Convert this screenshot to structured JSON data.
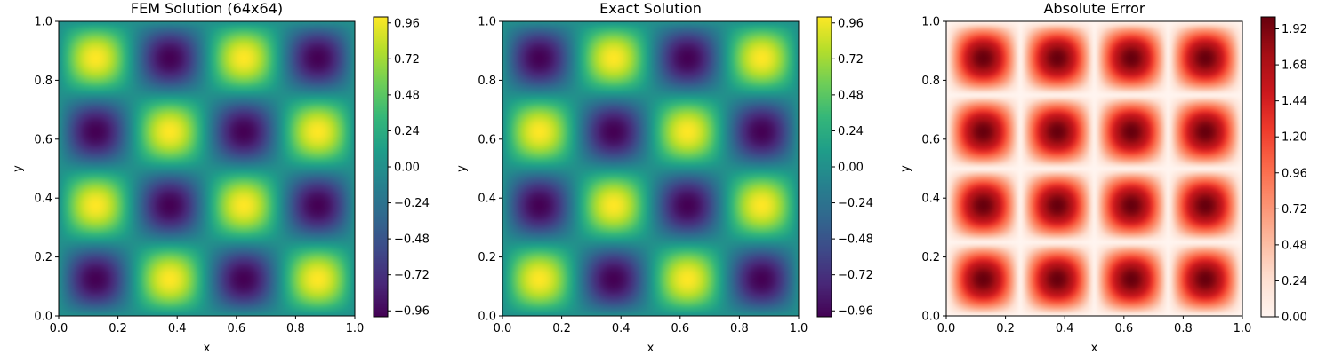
{
  "chart_data": [
    {
      "type": "heatmap",
      "title": "FEM Solution (64x64)",
      "xlabel": "x",
      "ylabel": "y",
      "xlim": [
        0,
        1
      ],
      "ylim": [
        0,
        1
      ],
      "x_ticks": [
        "0.0",
        "0.2",
        "0.4",
        "0.6",
        "0.8",
        "1.0"
      ],
      "y_ticks": [
        "0.0",
        "0.2",
        "0.4",
        "0.6",
        "0.8",
        "1.0"
      ],
      "function": "-sin(4*pi*x)*sin(4*pi*y)",
      "grid_resolution": [
        64,
        64
      ],
      "colormap": "viridis",
      "value_range": [
        -1,
        1
      ],
      "colorbar_ticks": [
        "−0.96",
        "−0.72",
        "−0.48",
        "−0.24",
        "0.00",
        "0.24",
        "0.48",
        "0.72",
        "0.96"
      ],
      "colorbar_tick_values": [
        -0.96,
        -0.72,
        -0.48,
        -0.24,
        0.0,
        0.24,
        0.48,
        0.72,
        0.96
      ],
      "grid": false
    },
    {
      "type": "heatmap",
      "title": "Exact Solution",
      "xlabel": "x",
      "ylabel": "y",
      "xlim": [
        0,
        1
      ],
      "ylim": [
        0,
        1
      ],
      "x_ticks": [
        "0.0",
        "0.2",
        "0.4",
        "0.6",
        "0.8",
        "1.0"
      ],
      "y_ticks": [
        "0.0",
        "0.2",
        "0.4",
        "0.6",
        "0.8",
        "1.0"
      ],
      "function": "sin(4*pi*x)*sin(4*pi*y)",
      "colormap": "viridis",
      "value_range": [
        -1,
        1
      ],
      "colorbar_ticks": [
        "−0.96",
        "−0.72",
        "−0.48",
        "−0.24",
        "0.00",
        "0.24",
        "0.48",
        "0.72",
        "0.96"
      ],
      "colorbar_tick_values": [
        -0.96,
        -0.72,
        -0.48,
        -0.24,
        0.0,
        0.24,
        0.48,
        0.72,
        0.96
      ],
      "grid": false
    },
    {
      "type": "heatmap",
      "title": "Absolute Error",
      "xlabel": "x",
      "ylabel": "y",
      "xlim": [
        0,
        1
      ],
      "ylim": [
        0,
        1
      ],
      "x_ticks": [
        "0.0",
        "0.2",
        "0.4",
        "0.6",
        "0.8",
        "1.0"
      ],
      "y_ticks": [
        "0.0",
        "0.2",
        "0.4",
        "0.6",
        "0.8",
        "1.0"
      ],
      "function": "2*|sin(4*pi*x)*sin(4*pi*y)|",
      "colormap": "reds",
      "value_range": [
        0,
        2
      ],
      "colorbar_ticks": [
        "0.00",
        "0.24",
        "0.48",
        "0.72",
        "0.96",
        "1.20",
        "1.44",
        "1.68",
        "1.92"
      ],
      "colorbar_tick_values": [
        0.0,
        0.24,
        0.48,
        0.72,
        0.96,
        1.2,
        1.44,
        1.68,
        1.92
      ],
      "grid": false
    }
  ]
}
